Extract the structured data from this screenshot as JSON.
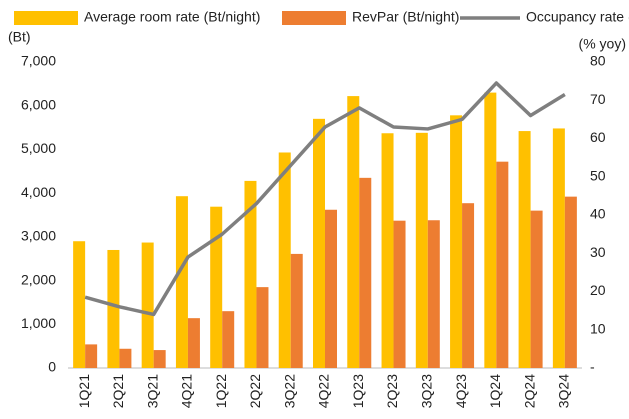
{
  "chart_data": {
    "type": "bar-line",
    "categories": [
      "1Q21",
      "2Q21",
      "3Q21",
      "4Q21",
      "1Q22",
      "2Q22",
      "3Q22",
      "4Q22",
      "1Q23",
      "2Q23",
      "3Q23",
      "4Q23",
      "1Q24",
      "2Q24",
      "3Q24"
    ],
    "y_label": "(Bt)",
    "y2_label": "(% yoy)",
    "series": [
      {
        "name": "Average room rate (Bt/night)",
        "color": "#FFC000",
        "type": "bar",
        "values": [
          2900,
          2700,
          2870,
          3930,
          3690,
          4280,
          4930,
          5700,
          6220,
          5370,
          5380,
          5780,
          6300,
          5420,
          5480
        ]
      },
      {
        "name": "RevPar (Bt/night)",
        "color": "#ED7D31",
        "type": "bar",
        "values": [
          540,
          440,
          410,
          1140,
          1300,
          1850,
          2610,
          3620,
          4350,
          3370,
          3380,
          3770,
          4720,
          3600,
          3920
        ]
      },
      {
        "name": "Occupancy rate (%)",
        "color": "#7F7F7F",
        "type": "line",
        "axis": "y2",
        "values": [
          18.5,
          16,
          14,
          29,
          35,
          43,
          53,
          63,
          68,
          63,
          62.5,
          65,
          74.5,
          66,
          71.5
        ]
      }
    ],
    "ylim": [
      0,
      7000
    ],
    "yticks": [
      0,
      {
        "value": 1000,
        "label": "1,000"
      },
      {
        "value": 2000,
        "label": "2,000"
      },
      {
        "value": 3000,
        "label": "3,000"
      },
      {
        "value": 4000,
        "label": "4,000"
      },
      {
        "value": 5000,
        "label": "5,000"
      },
      {
        "value": 6000,
        "label": "6,000"
      },
      {
        "value": 7000,
        "label": "7,000"
      }
    ],
    "y2lim": [
      0,
      80
    ],
    "y2ticks": [
      {
        "value": 0,
        "label": "-"
      },
      10,
      20,
      30,
      40,
      50,
      60,
      70,
      80
    ],
    "grid": false,
    "legend": "top"
  }
}
